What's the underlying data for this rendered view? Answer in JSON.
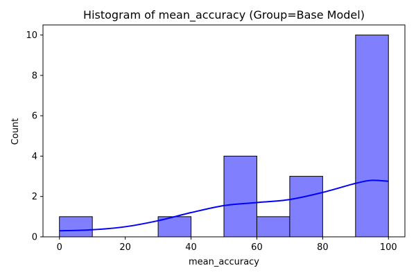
{
  "chart_data": {
    "type": "histogram",
    "title": "Histogram of mean_accuracy (Group=Base Model)",
    "xlabel": "mean_accuracy",
    "ylabel": "Count",
    "xlim": [
      -5,
      105
    ],
    "ylim": [
      0,
      10.5
    ],
    "xticks": [
      0,
      20,
      40,
      60,
      80,
      100
    ],
    "yticks": [
      0,
      2,
      4,
      6,
      8,
      10
    ],
    "grid": false,
    "bar_color": "#8080ff",
    "bar_edge_color": "#000000",
    "kde_color": "#0000ff",
    "bins": [
      {
        "x0": 0,
        "x1": 10,
        "count": 1
      },
      {
        "x0": 10,
        "x1": 20,
        "count": 0
      },
      {
        "x0": 20,
        "x1": 30,
        "count": 0
      },
      {
        "x0": 30,
        "x1": 40,
        "count": 1
      },
      {
        "x0": 40,
        "x1": 50,
        "count": 0
      },
      {
        "x0": 50,
        "x1": 60,
        "count": 4
      },
      {
        "x0": 60,
        "x1": 70,
        "count": 1
      },
      {
        "x0": 70,
        "x1": 80,
        "count": 3
      },
      {
        "x0": 80,
        "x1": 90,
        "count": 0
      },
      {
        "x0": 90,
        "x1": 100,
        "count": 10
      }
    ],
    "kde": {
      "x": [
        0,
        10,
        20,
        30,
        40,
        50,
        60,
        70,
        80,
        90,
        95,
        100
      ],
      "y": [
        0.3,
        0.35,
        0.5,
        0.8,
        1.2,
        1.55,
        1.7,
        1.85,
        2.2,
        2.65,
        2.8,
        2.75
      ]
    }
  }
}
